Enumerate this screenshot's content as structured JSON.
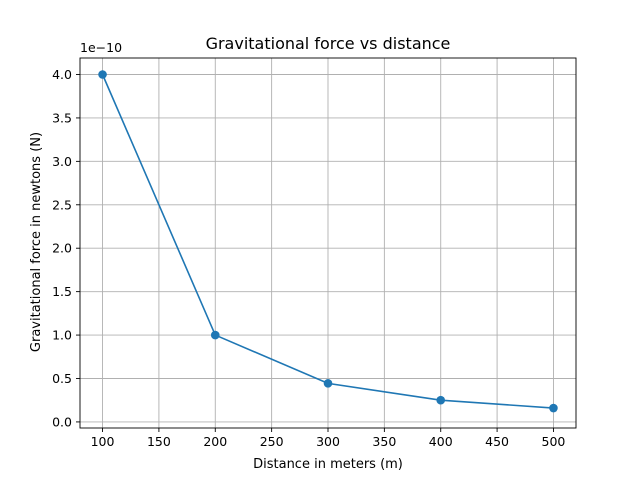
{
  "chart_data": {
    "type": "line",
    "title": "Gravitational force vs distance",
    "xlabel": "Distance in meters (m)",
    "ylabel": "Gravitational force in newtons (N)",
    "y_offset_label": "1e−10",
    "y_scale_factor": 1e-10,
    "xlim": [
      80,
      520
    ],
    "ylim": [
      -0.07,
      4.19
    ],
    "xticks": [
      100,
      150,
      200,
      250,
      300,
      350,
      400,
      450,
      500
    ],
    "xtick_labels": [
      "100",
      "150",
      "200",
      "250",
      "300",
      "350",
      "400",
      "450",
      "500"
    ],
    "yticks": [
      0.0,
      0.5,
      1.0,
      1.5,
      2.0,
      2.5,
      3.0,
      3.5,
      4.0
    ],
    "ytick_labels": [
      "0.0",
      "0.5",
      "1.0",
      "1.5",
      "2.0",
      "2.5",
      "3.0",
      "3.5",
      "4.0"
    ],
    "grid": true,
    "series": [
      {
        "color": "#1f77b4",
        "marker": "circle",
        "x": [
          100,
          200,
          300,
          400,
          500
        ],
        "y": [
          4.0,
          1.0,
          0.444,
          0.25,
          0.16
        ]
      }
    ]
  }
}
